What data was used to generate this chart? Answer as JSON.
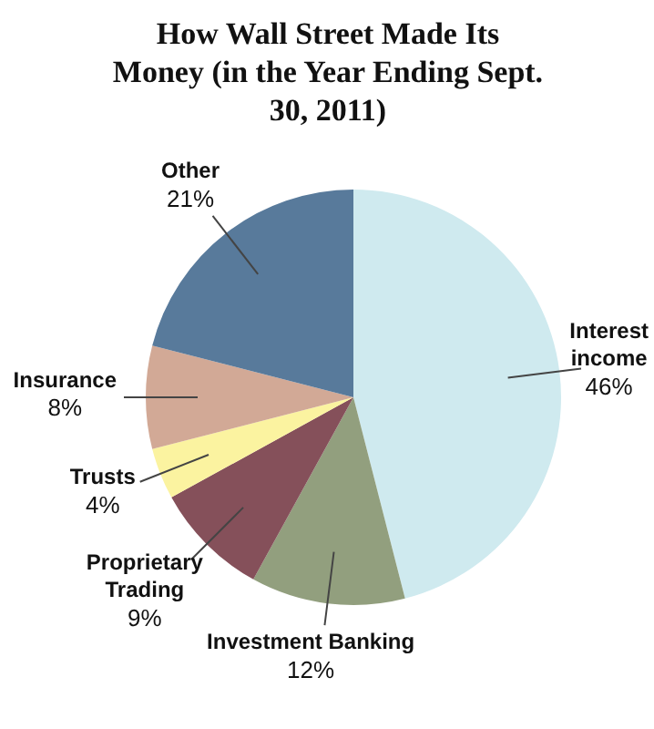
{
  "chart_data": {
    "type": "pie",
    "title": "How Wall Street Made Its Money (in the Year Ending Sept. 30, 2011)",
    "categories": [
      "Interest income",
      "Investment Banking",
      "Proprietary Trading",
      "Trusts",
      "Insurance",
      "Other"
    ],
    "values": [
      46,
      12,
      9,
      4,
      8,
      21
    ],
    "colors": [
      "#cfeaef",
      "#929f7e",
      "#85505a",
      "#fbf3a0",
      "#d2a996",
      "#587a9b"
    ],
    "value_labels": [
      "46%",
      "12%",
      "9%",
      "4%",
      "8%",
      "21%"
    ],
    "legend": false
  }
}
